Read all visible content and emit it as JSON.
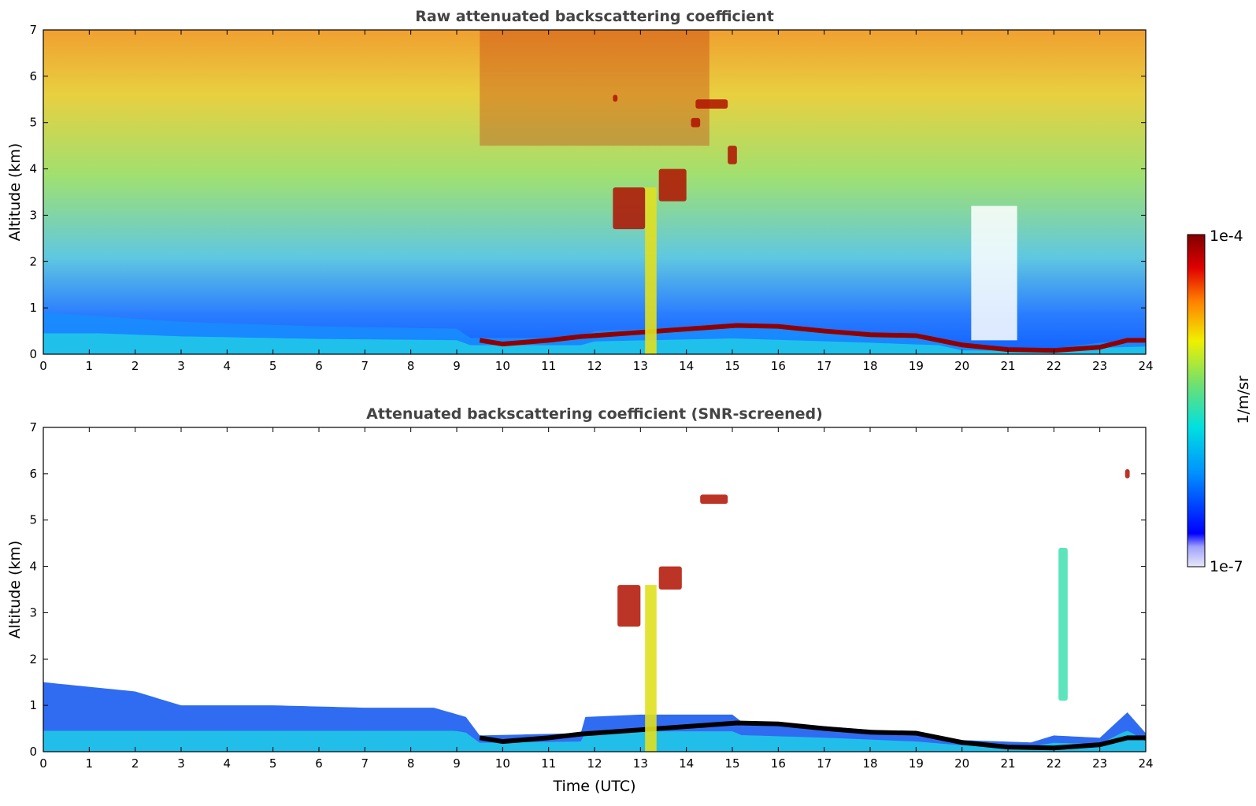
{
  "chart_data": [
    {
      "type": "heatmap",
      "title": "Raw attenuated backscattering coefficient",
      "xlabel": "",
      "ylabel": "Altitude (km)",
      "xlim": [
        0,
        24
      ],
      "ylim": [
        0,
        7
      ],
      "x_ticks": [
        0,
        1,
        2,
        3,
        4,
        5,
        6,
        7,
        8,
        9,
        10,
        11,
        12,
        13,
        14,
        15,
        16,
        17,
        18,
        19,
        20,
        21,
        22,
        23,
        24
      ],
      "y_ticks": [
        0,
        1,
        2,
        3,
        4,
        5,
        6,
        7
      ],
      "aerosol_layer_top_km": [
        [
          0,
          0.9
        ],
        [
          3,
          0.7
        ],
        [
          6,
          0.6
        ],
        [
          9,
          0.55
        ],
        [
          9.3,
          0.35
        ],
        [
          11.7,
          0.35
        ],
        [
          12,
          0.5
        ],
        [
          15,
          0.62
        ],
        [
          18,
          0.45
        ],
        [
          19.5,
          0.35
        ],
        [
          20,
          0.15
        ],
        [
          22,
          0.12
        ],
        [
          23,
          0.25
        ],
        [
          24,
          0.3
        ]
      ],
      "boundary_layer_top_km": [
        [
          9.5,
          0.3
        ],
        [
          10,
          0.22
        ],
        [
          11,
          0.3
        ],
        [
          11.7,
          0.38
        ],
        [
          15.1,
          0.62
        ],
        [
          16,
          0.6
        ],
        [
          17,
          0.5
        ],
        [
          18,
          0.42
        ],
        [
          19,
          0.4
        ],
        [
          20,
          0.2
        ],
        [
          21,
          0.1
        ],
        [
          22,
          0.08
        ],
        [
          23,
          0.15
        ],
        [
          23.6,
          0.3
        ],
        [
          24,
          0.3
        ]
      ],
      "high_clouds": [
        {
          "x": [
            12.4,
            13.1
          ],
          "y": [
            2.7,
            3.6
          ]
        },
        {
          "x": [
            13.4,
            14.0
          ],
          "y": [
            3.3,
            4.0
          ]
        },
        {
          "x": [
            14.2,
            14.9
          ],
          "y": [
            5.3,
            5.5
          ]
        },
        {
          "x": [
            14.1,
            14.3
          ],
          "y": [
            4.9,
            5.1
          ]
        },
        {
          "x": [
            14.9,
            15.1
          ],
          "y": [
            4.1,
            4.5
          ]
        },
        {
          "x": [
            12.4,
            12.5
          ],
          "y": [
            5.45,
            5.6
          ]
        }
      ],
      "precip_column": {
        "x": [
          13.1,
          13.35
        ],
        "y": [
          0,
          3.6
        ]
      },
      "colorbar": {
        "min": "1e-7",
        "max": "1e-4",
        "label": "1/m/sr",
        "scale": "log"
      }
    },
    {
      "type": "heatmap",
      "title": "Attenuated backscattering coefficient (SNR-screened)",
      "xlabel": "Time (UTC)",
      "ylabel": "Altitude (km)",
      "xlim": [
        0,
        24
      ],
      "ylim": [
        0,
        7
      ],
      "x_ticks": [
        0,
        1,
        2,
        3,
        4,
        5,
        6,
        7,
        8,
        9,
        10,
        11,
        12,
        13,
        14,
        15,
        16,
        17,
        18,
        19,
        20,
        21,
        22,
        23,
        24
      ],
      "y_ticks": [
        0,
        1,
        2,
        3,
        4,
        5,
        6,
        7
      ],
      "screened_layer_top_km": [
        [
          0,
          1.5
        ],
        [
          1,
          1.4
        ],
        [
          2,
          1.3
        ],
        [
          3,
          1.0
        ],
        [
          5,
          1.0
        ],
        [
          7,
          0.95
        ],
        [
          8.5,
          0.95
        ],
        [
          9.2,
          0.75
        ],
        [
          9.5,
          0.35
        ],
        [
          11.7,
          0.4
        ],
        [
          11.8,
          0.75
        ],
        [
          13,
          0.8
        ],
        [
          15,
          0.8
        ],
        [
          15.2,
          0.65
        ],
        [
          17,
          0.55
        ],
        [
          19,
          0.4
        ],
        [
          20,
          0.25
        ],
        [
          21.5,
          0.2
        ],
        [
          22,
          0.35
        ],
        [
          23,
          0.3
        ],
        [
          23.6,
          0.85
        ],
        [
          24,
          0.4
        ]
      ],
      "boundary_layer_top_km": [
        [
          9.5,
          0.3
        ],
        [
          10,
          0.22
        ],
        [
          11,
          0.3
        ],
        [
          11.7,
          0.38
        ],
        [
          15.1,
          0.62
        ],
        [
          16,
          0.6
        ],
        [
          17,
          0.5
        ],
        [
          18,
          0.42
        ],
        [
          19,
          0.4
        ],
        [
          20,
          0.2
        ],
        [
          21,
          0.1
        ],
        [
          22,
          0.08
        ],
        [
          23,
          0.15
        ],
        [
          23.6,
          0.3
        ],
        [
          24,
          0.3
        ]
      ],
      "high_clouds": [
        {
          "x": [
            14.3,
            14.9
          ],
          "y": [
            5.35,
            5.55
          ]
        },
        {
          "x": [
            12.5,
            13.0
          ],
          "y": [
            2.7,
            3.6
          ]
        },
        {
          "x": [
            13.4,
            13.9
          ],
          "y": [
            3.5,
            4.0
          ]
        },
        {
          "x": [
            22.1,
            22.3
          ],
          "y": [
            1.1,
            4.4
          ]
        },
        {
          "x": [
            23.55,
            23.65
          ],
          "y": [
            5.9,
            6.1
          ]
        }
      ],
      "colorbar": {
        "min": "1e-7",
        "max": "1e-4",
        "label": "1/m/sr",
        "scale": "log"
      }
    }
  ],
  "colors": {
    "colormap": [
      "#e8e8f8",
      "#0000ff",
      "#0090ff",
      "#00e0e0",
      "#70e070",
      "#f0f000",
      "#ff8000",
      "#e00000",
      "#800000"
    ],
    "title": "#444444"
  }
}
